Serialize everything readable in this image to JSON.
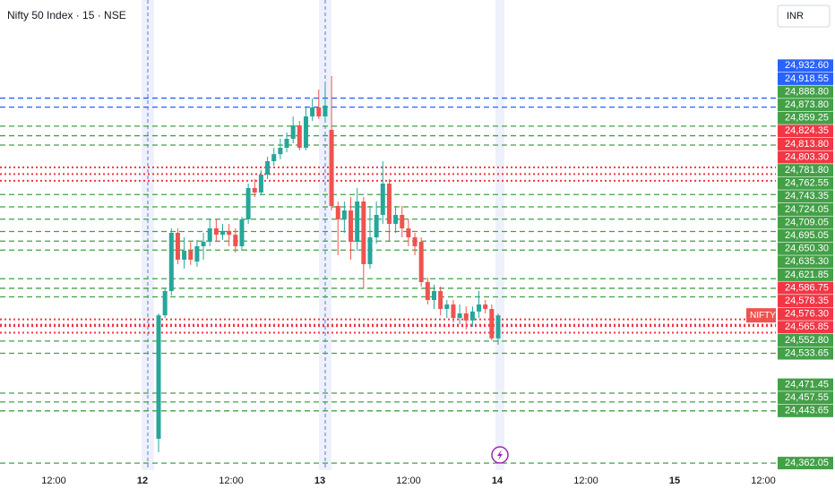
{
  "chart_data": {
    "type": "candlestick",
    "title": "Nifty 50 Index · 15 · NSE",
    "currency": "INR",
    "symbol": "NIFTY",
    "up_color": "#26a69a",
    "down_color": "#ef5350",
    "ylim": [
      24351,
      25086
    ],
    "time_labels": [
      "12:00",
      "12",
      "12:00",
      "13",
      "12:00",
      "14",
      "12:00",
      "15",
      "12:00"
    ],
    "open": [
      24400,
      24593,
      24631,
      24722,
      24680,
      24694,
      24677,
      24701,
      24708,
      24729,
      24719,
      24725,
      24719,
      24701,
      24743,
      24792,
      24785,
      24813,
      24834,
      24845,
      24855,
      24869,
      24890,
      24855,
      24904,
      24918,
      24904,
      24883,
      24764,
      24743,
      24757,
      24708,
      24771,
      24673,
      24715,
      24750,
      24799,
      24736,
      24750,
      24729,
      24715,
      24708,
      24645,
      24617,
      24631,
      24603,
      24610,
      24589,
      24596,
      24585,
      24599,
      24610,
      24603,
      24557
    ],
    "high": [
      24596,
      24635,
      24729,
      24729,
      24715,
      24708,
      24711,
      24722,
      24743,
      24743,
      24736,
      24736,
      24729,
      24747,
      24799,
      24806,
      24820,
      24841,
      24855,
      24869,
      24879,
      24904,
      24897,
      24918,
      24932,
      24946,
      24953,
      24967,
      24771,
      24771,
      24778,
      24792,
      24778,
      24764,
      24771,
      24834,
      24806,
      24764,
      24764,
      24743,
      24722,
      24715,
      24652,
      24641,
      24638,
      24617,
      24617,
      24610,
      24607,
      24607,
      24631,
      24617,
      24610,
      24596
    ],
    "low": [
      24379,
      24589,
      24624,
      24673,
      24666,
      24672,
      24669,
      24680,
      24701,
      24708,
      24711,
      24701,
      24691,
      24694,
      24736,
      24778,
      24781,
      24806,
      24827,
      24837,
      24848,
      24862,
      24851,
      24851,
      24897,
      24900,
      24897,
      24757,
      24687,
      24722,
      24680,
      24694,
      24635,
      24666,
      24705,
      24736,
      24708,
      24722,
      24715,
      24701,
      24687,
      24638,
      24610,
      24603,
      24593,
      24589,
      24582,
      24579,
      24571,
      24575,
      24589,
      24596,
      24554,
      24547
    ],
    "close": [
      24593,
      24631,
      24722,
      24680,
      24694,
      24680,
      24701,
      24708,
      24729,
      24719,
      24725,
      24719,
      24701,
      24743,
      24792,
      24785,
      24813,
      24834,
      24845,
      24855,
      24869,
      24890,
      24855,
      24904,
      24918,
      24904,
      24921,
      24764,
      24743,
      24757,
      24708,
      24771,
      24673,
      24715,
      24750,
      24799,
      24736,
      24750,
      24729,
      24715,
      24701,
      24645,
      24617,
      24631,
      24603,
      24610,
      24589,
      24596,
      24585,
      24599,
      24610,
      24603,
      24557,
      24593
    ],
    "levels": [
      {
        "value": 24932.6,
        "label": "24,932.60",
        "color": "#2962ff",
        "style": "dashed"
      },
      {
        "value": 24918.55,
        "label": "24,918.55",
        "color": "#2962ff",
        "style": "dashed"
      },
      {
        "value": 24888.8,
        "label": "24,888.80",
        "color": "#43a047",
        "style": "dashed"
      },
      {
        "value": 24873.8,
        "label": "24,873.80",
        "color": "#43a047",
        "style": "dashed"
      },
      {
        "value": 24859.25,
        "label": "24,859.25",
        "color": "#43a047",
        "style": "dashed"
      },
      {
        "value": 24824.35,
        "label": "24,824.35",
        "color": "#f23645",
        "style": "dotted"
      },
      {
        "value": 24813.8,
        "label": "24,813.80",
        "color": "#f23645",
        "style": "dotted"
      },
      {
        "value": 24803.3,
        "label": "24,803.30",
        "color": "#f23645",
        "style": "dotted"
      },
      {
        "value": 24781.8,
        "label": "24,781.80",
        "color": "#43a047",
        "style": "dashed"
      },
      {
        "value": 24762.55,
        "label": "24,762.55",
        "color": "#43a047",
        "style": "dashed"
      },
      {
        "value": 24743.35,
        "label": "24,743.35",
        "color": "#43a047",
        "style": "dashed"
      },
      {
        "value": 24724.05,
        "label": "24,724.05",
        "color": "#43a047",
        "style": "dashed"
      },
      {
        "value": 24709.05,
        "label": "24,709.05",
        "color": "#43a047",
        "style": "dashed"
      },
      {
        "value": 24695.05,
        "label": "24,695.05",
        "color": "#43a047",
        "style": "dashed"
      },
      {
        "value": 24650.3,
        "label": "24,650.30",
        "color": "#43a047",
        "style": "dashed"
      },
      {
        "value": 24635.3,
        "label": "24,635.30",
        "color": "#43a047",
        "style": "dashed"
      },
      {
        "value": 24621.85,
        "label": "24,621.85",
        "color": "#43a047",
        "style": "dashed"
      },
      {
        "value": 24586.75,
        "label": "24,586.75",
        "color": "#f23645",
        "style": "dotted"
      },
      {
        "value": 24578.35,
        "label": "24,578.35",
        "color": "#f23645",
        "style": "dotted"
      },
      {
        "value": 24576.3,
        "label": "24,576.30",
        "color": "#f23645",
        "style": "dotted"
      },
      {
        "value": 24565.85,
        "label": "24,565.85",
        "color": "#f23645",
        "style": "dotted"
      },
      {
        "value": 24552.8,
        "label": "24,552.80",
        "color": "#43a047",
        "style": "dashed"
      },
      {
        "value": 24533.65,
        "label": "24,533.65",
        "color": "#43a047",
        "style": "dashed"
      },
      {
        "value": 24471.45,
        "label": "24,471.45",
        "color": "#43a047",
        "style": "dashed"
      },
      {
        "value": 24457.55,
        "label": "24,457.55",
        "color": "#43a047",
        "style": "dashed"
      },
      {
        "value": 24443.65,
        "label": "24,443.65",
        "color": "#43a047",
        "style": "dashed"
      },
      {
        "value": 24362.05,
        "label": "24,362.05",
        "color": "#43a047",
        "style": "dashed"
      }
    ]
  }
}
